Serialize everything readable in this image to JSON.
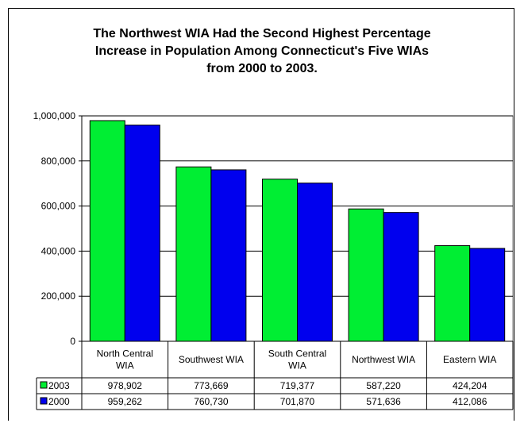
{
  "chart_data": {
    "type": "bar",
    "title": [
      "The Northwest WIA Had the Second Highest Percentage",
      "Increase in Population Among Connecticut's Five WIAs",
      "from 2000 to 2003."
    ],
    "categories": [
      [
        "North Central",
        "WIA"
      ],
      [
        "Southwest WIA"
      ],
      [
        "South Central",
        "WIA"
      ],
      [
        "Northwest WIA"
      ],
      [
        "Eastern WIA"
      ]
    ],
    "series": [
      {
        "name": "2003",
        "color": "#00ee33",
        "values": [
          978902,
          773669,
          719377,
          587220,
          424204
        ],
        "labels": [
          "978,902",
          "773,669",
          "719,377",
          "587,220",
          "424,204"
        ]
      },
      {
        "name": "2000",
        "color": "#0000ee",
        "values": [
          959262,
          760730,
          701870,
          571636,
          412086
        ],
        "labels": [
          "959,262",
          "760,730",
          "701,870",
          "571,636",
          "412,086"
        ]
      }
    ],
    "yticks": [
      0,
      200000,
      400000,
      600000,
      800000,
      1000000
    ],
    "ytick_labels": [
      "0",
      "200,000",
      "400,000",
      "600,000",
      "800,000",
      "1,000,000"
    ],
    "ylim": [
      0,
      1000000
    ],
    "xlabel": "",
    "ylabel": "",
    "grid": true,
    "legend": "data-table"
  }
}
